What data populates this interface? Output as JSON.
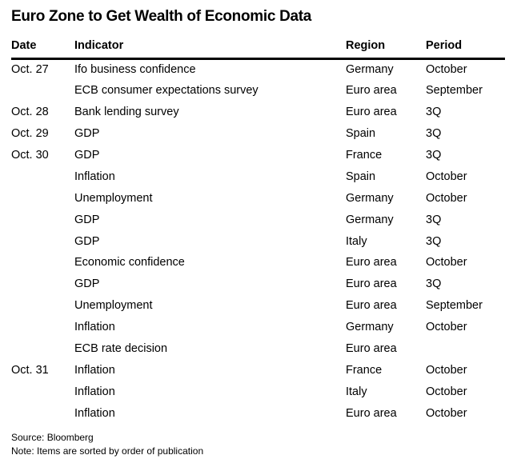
{
  "title": "Euro Zone to Get Wealth of Economic Data",
  "chart_data": {
    "type": "table",
    "title": "Euro Zone to Get Wealth of Economic Data",
    "columns": [
      "Date",
      "Indicator",
      "Region",
      "Period"
    ],
    "rows": [
      [
        "Oct. 27",
        "Ifo business confidence",
        "Germany",
        "October"
      ],
      [
        "",
        "ECB consumer expectations survey",
        "Euro area",
        "September"
      ],
      [
        "Oct. 28",
        "Bank lending survey",
        "Euro area",
        "3Q"
      ],
      [
        "Oct. 29",
        "GDP",
        "Spain",
        "3Q"
      ],
      [
        "Oct. 30",
        "GDP",
        "France",
        "3Q"
      ],
      [
        "",
        "Inflation",
        "Spain",
        "October"
      ],
      [
        "",
        "Unemployment",
        "Germany",
        "October"
      ],
      [
        "",
        "GDP",
        "Germany",
        "3Q"
      ],
      [
        "",
        "GDP",
        "Italy",
        "3Q"
      ],
      [
        "",
        "Economic confidence",
        "Euro area",
        "October"
      ],
      [
        "",
        "GDP",
        "Euro area",
        "3Q"
      ],
      [
        "",
        "Unemployment",
        "Euro area",
        "September"
      ],
      [
        "",
        "Inflation",
        "Germany",
        "October"
      ],
      [
        "",
        "ECB rate decision",
        "Euro area",
        ""
      ],
      [
        "Oct. 31",
        "Inflation",
        "France",
        "October"
      ],
      [
        "",
        "Inflation",
        "Italy",
        "October"
      ],
      [
        "",
        "Inflation",
        "Euro area",
        "October"
      ]
    ],
    "notes_layout": "sorted by date, blank date cells continue previous date"
  },
  "footer": {
    "source": "Source: Bloomberg",
    "note": "Note: Items are sorted by order of publication"
  },
  "colors": {
    "text": "#000000",
    "rule": "#000000",
    "background": "#ffffff"
  }
}
